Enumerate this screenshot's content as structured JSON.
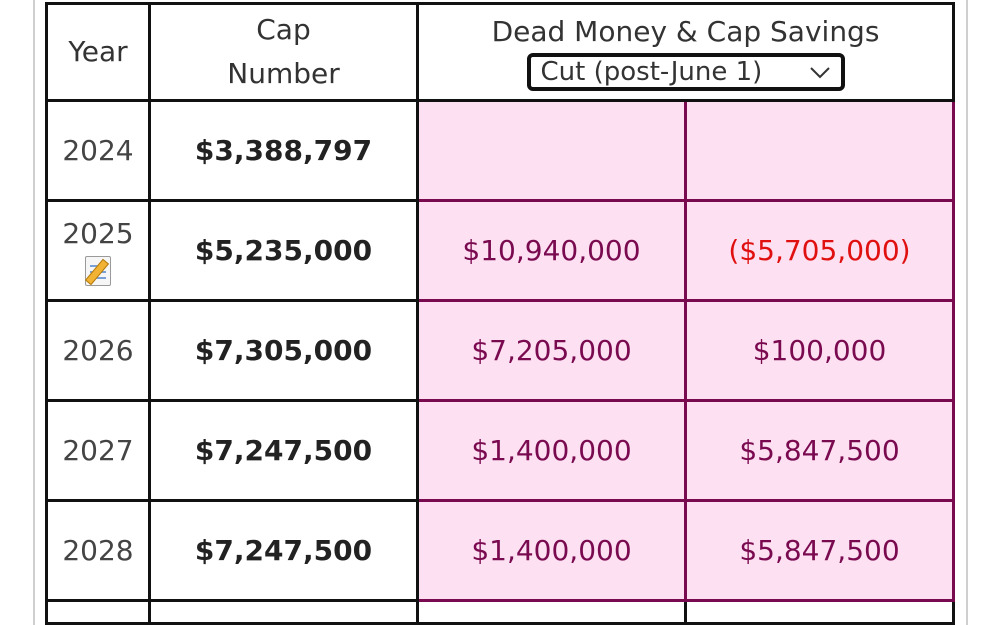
{
  "table": {
    "headers": {
      "year": "Year",
      "cap_number_line1": "Cap",
      "cap_number_line2": "Number",
      "dead_money": "Dead Money & Cap Savings"
    },
    "scenario_select": {
      "selected": "Cut (post-June 1)",
      "icon": "chevron-down-icon"
    },
    "rows": [
      {
        "year": "2024",
        "cap_number": "$3,388,797",
        "dead_money": "",
        "cap_savings": "",
        "has_note": false
      },
      {
        "year": "2025",
        "cap_number": "$5,235,000",
        "dead_money": "$10,940,000",
        "cap_savings": "($5,705,000)",
        "has_note": true
      },
      {
        "year": "2026",
        "cap_number": "$7,305,000",
        "dead_money": "$7,205,000",
        "cap_savings": "$100,000",
        "has_note": false
      },
      {
        "year": "2027",
        "cap_number": "$7,247,500",
        "dead_money": "$1,400,000",
        "cap_savings": "$5,847,500",
        "has_note": false
      },
      {
        "year": "2028",
        "cap_number": "$7,247,500",
        "dead_money": "$1,400,000",
        "cap_savings": "$5,847,500",
        "has_note": false
      }
    ],
    "note_icon": "memo-icon"
  },
  "colors": {
    "dead_money_bg": "#fde0f1",
    "dead_money_text": "#7a0a50",
    "negative_text": "#e01010"
  }
}
